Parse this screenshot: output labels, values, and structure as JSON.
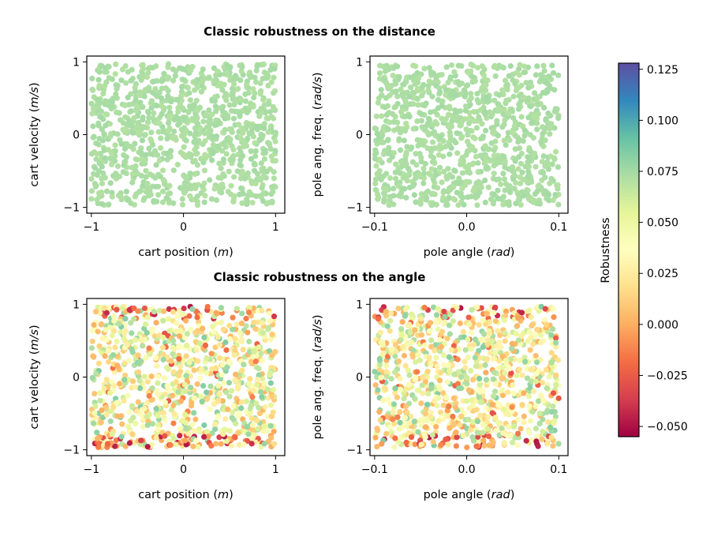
{
  "chart_data": {
    "type": "scatter",
    "colorscale": {
      "name": "Spectral",
      "label": "Robustness",
      "range": [
        -0.055,
        0.128
      ],
      "ticks": [
        -0.05,
        -0.025,
        0.0,
        0.025,
        0.05,
        0.075,
        0.1,
        0.125
      ],
      "tick_labels": [
        "−0.050",
        "−0.025",
        "0.000",
        "0.025",
        "0.050",
        "0.075",
        "0.100",
        "0.125"
      ]
    },
    "rows": [
      {
        "title": "Classic robustness on the distance",
        "panels": [
          {
            "xlabel": "cart position",
            "xunit": "m",
            "ylabel": "cart velocity",
            "yunit": "m/s",
            "xlim": [
              -1.05,
              1.1
            ],
            "ylim": [
              -1.08,
              1.08
            ],
            "xticks": [
              -1,
              0,
              1
            ],
            "xtick_labels": [
              "−1",
              "0",
              "1"
            ],
            "yticks": [
              -1,
              0,
              1
            ],
            "ytick_labels": [
              "−1",
              "0",
              "1"
            ],
            "n_points": 1000,
            "value_range": [
              0.07,
              0.075
            ],
            "seed": 11
          },
          {
            "xlabel": "pole angle",
            "xunit": "rad",
            "ylabel": "pole ang. freq.",
            "yunit": "rad/s",
            "xlim": [
              -0.105,
              0.11
            ],
            "ylim": [
              -1.08,
              1.08
            ],
            "xticks": [
              -0.1,
              0.0,
              0.1
            ],
            "xtick_labels": [
              "−0.1",
              "0.0",
              "0.1"
            ],
            "yticks": [
              -1,
              0,
              1
            ],
            "ytick_labels": [
              "−1",
              "0",
              "1"
            ],
            "n_points": 1000,
            "value_range": [
              0.07,
              0.075
            ],
            "seed": 23
          }
        ]
      },
      {
        "title": "Classic robustness on the angle",
        "panels": [
          {
            "xlabel": "cart position",
            "xunit": "m",
            "ylabel": "cart velocity",
            "yunit": "m/s",
            "xlim": [
              -1.05,
              1.1
            ],
            "ylim": [
              -1.08,
              1.08
            ],
            "xticks": [
              -1,
              0,
              1
            ],
            "xtick_labels": [
              "−1",
              "0",
              "1"
            ],
            "yticks": [
              -1,
              0,
              1
            ],
            "ytick_labels": [
              "−1",
              "0",
              "1"
            ],
            "n_points": 1000,
            "value_range": [
              -0.05,
              0.085
            ],
            "seed": 37
          },
          {
            "xlabel": "pole angle",
            "xunit": "rad",
            "ylabel": "pole ang. freq.",
            "yunit": "rad/s",
            "xlim": [
              -0.105,
              0.11
            ],
            "ylim": [
              -1.08,
              1.08
            ],
            "xticks": [
              -0.1,
              0.0,
              0.1
            ],
            "xtick_labels": [
              "−0.1",
              "0.0",
              "0.1"
            ],
            "yticks": [
              -1,
              0,
              1
            ],
            "ytick_labels": [
              "−1",
              "0",
              "1"
            ],
            "n_points": 1000,
            "value_range": [
              -0.05,
              0.085
            ],
            "seed": 53
          }
        ]
      }
    ]
  }
}
